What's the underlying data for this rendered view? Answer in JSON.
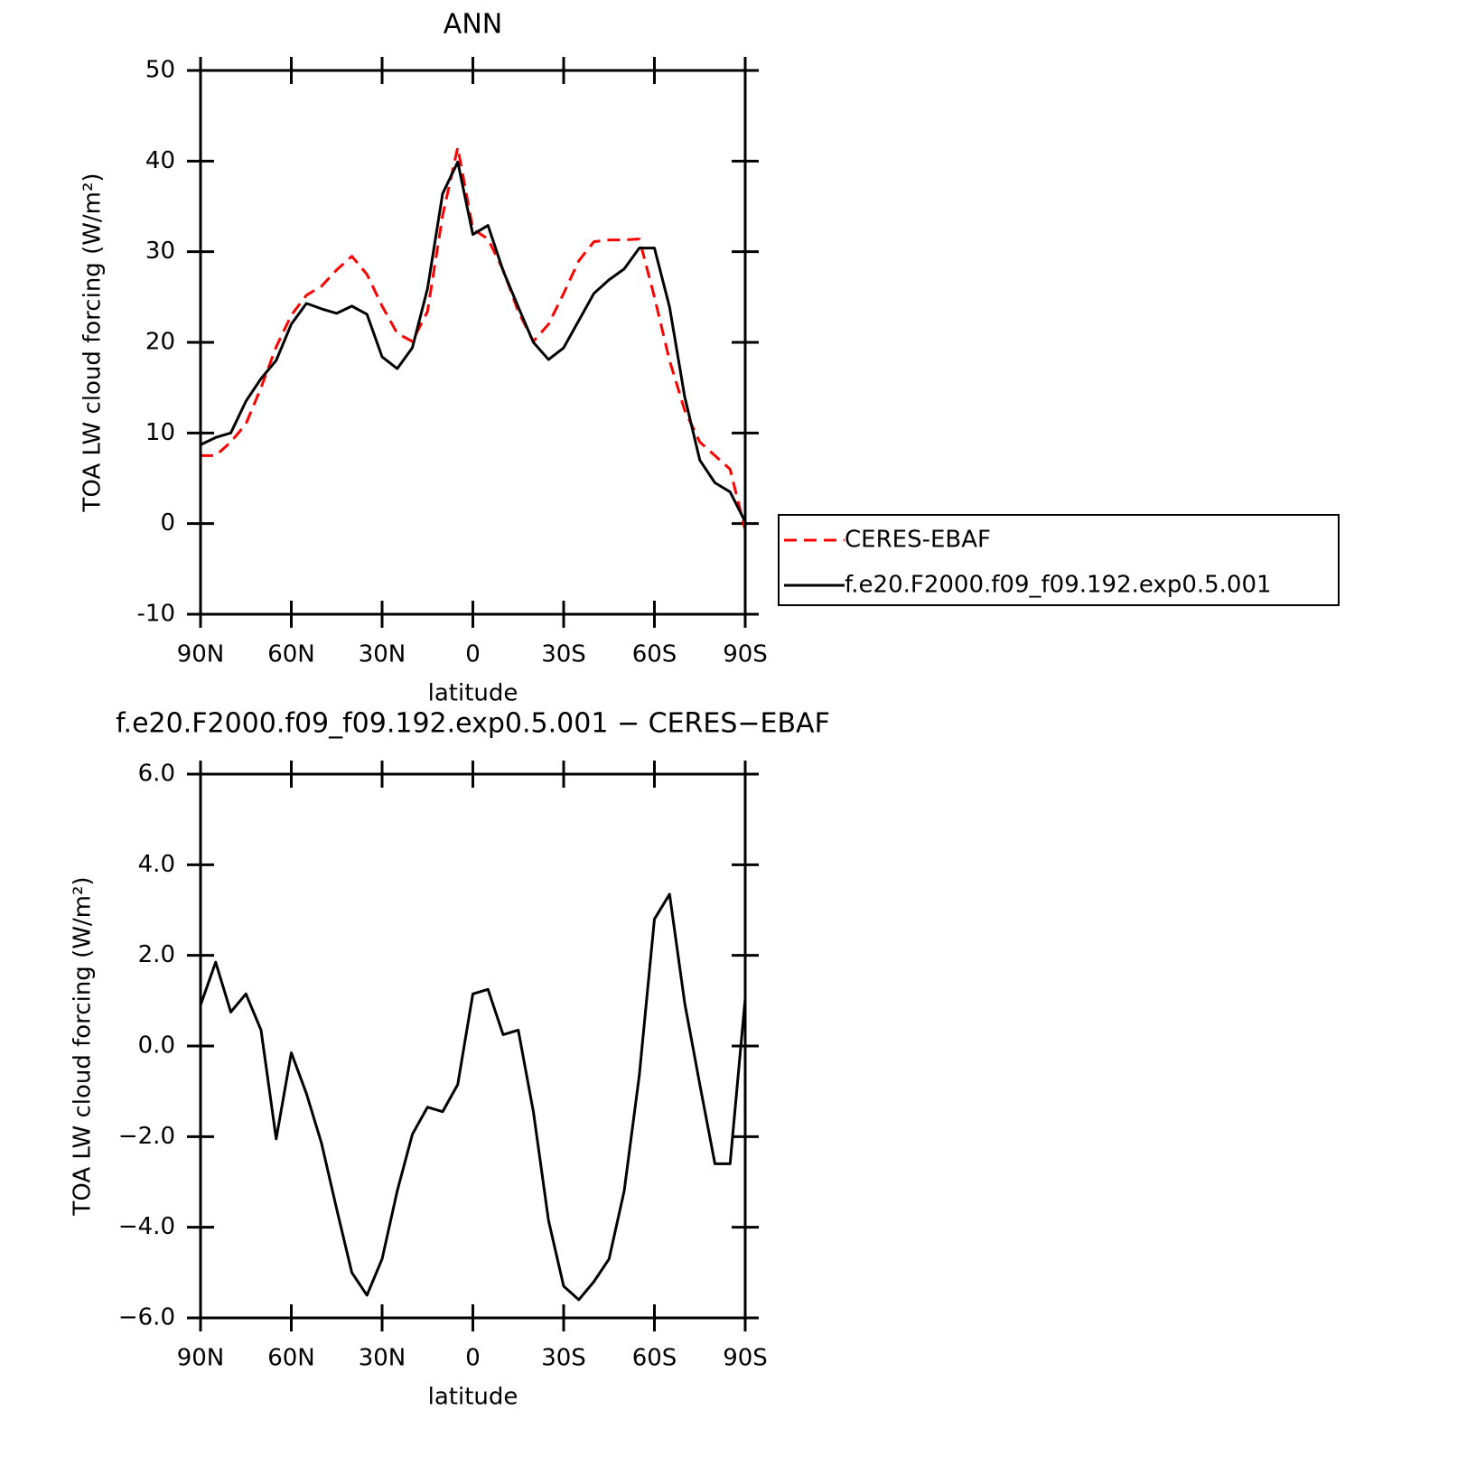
{
  "chart_data": [
    {
      "type": "line",
      "title": "ANN",
      "xlabel": "latitude",
      "ylabel": "TOA LW cloud forcing (W/m²)",
      "x": [
        90,
        85,
        80,
        75,
        70,
        65,
        60,
        55,
        50,
        45,
        40,
        35,
        30,
        25,
        20,
        15,
        10,
        5,
        0,
        -5,
        -10,
        -15,
        -20,
        -25,
        -30,
        -35,
        -40,
        -45,
        -50,
        -55,
        -60,
        -65,
        -70,
        -75,
        -80,
        -85,
        -90
      ],
      "xlim": [
        90,
        -90
      ],
      "xticks": [
        {
          "value": 90,
          "label": "90N"
        },
        {
          "value": 60,
          "label": "60N"
        },
        {
          "value": 30,
          "label": "30N"
        },
        0,
        {
          "value": -30,
          "label": "30S"
        },
        {
          "value": -60,
          "label": "60S"
        },
        {
          "value": -90,
          "label": "90S"
        }
      ],
      "ylim": [
        -10,
        50
      ],
      "yticks": [
        -10,
        0,
        10,
        20,
        30,
        40,
        50
      ],
      "legend": "right",
      "series": [
        {
          "name": "CERES-EBAF",
          "color": "#ff0000",
          "dash": true,
          "values": [
            7.5,
            7.5,
            9,
            11,
            15,
            19.5,
            23,
            25.2,
            26.2,
            28,
            29.5,
            27.5,
            24,
            21,
            20.1,
            23.4,
            34,
            41.5,
            32.5,
            31.4,
            28,
            23.4,
            20.1,
            22,
            25.4,
            29,
            31.1,
            31.3,
            31.3,
            31.4,
            25,
            18,
            12.5,
            9,
            7.5,
            6,
            -0.7
          ]
        },
        {
          "name": "f.e20.F2000.f09_f09.192.exp0.5.001",
          "color": "#000000",
          "dash": false,
          "values": [
            8.7,
            9.5,
            10,
            13.5,
            16,
            18,
            22,
            24.3,
            23.7,
            23.2,
            24,
            23.1,
            18.4,
            17.1,
            19.4,
            25.9,
            36.4,
            39.9,
            31.9,
            32.9,
            27.9,
            23.9,
            20,
            18.1,
            19.4,
            22.4,
            25.4,
            26.9,
            28.1,
            30.4,
            30.4,
            23.9,
            14,
            7,
            4.5,
            3.5,
            0.2
          ]
        }
      ]
    },
    {
      "type": "line",
      "title": "f.e20.F2000.f09_f09.192.exp0.5.001 − CERES−EBAF",
      "xlabel": "latitude",
      "ylabel": "TOA LW cloud forcing (W/m²)",
      "x": [
        90,
        85,
        80,
        75,
        70,
        65,
        60,
        55,
        50,
        45,
        40,
        35,
        30,
        25,
        20,
        15,
        10,
        5,
        0,
        -5,
        -10,
        -15,
        -20,
        -25,
        -30,
        -35,
        -40,
        -45,
        -50,
        -55,
        -60,
        -65,
        -70,
        -75,
        -80,
        -85,
        -90
      ],
      "xlim": [
        90,
        -90
      ],
      "xticks": [
        {
          "value": 90,
          "label": "90N"
        },
        {
          "value": 60,
          "label": "60N"
        },
        {
          "value": 30,
          "label": "30N"
        },
        0,
        {
          "value": -30,
          "label": "30S"
        },
        {
          "value": -60,
          "label": "60S"
        },
        {
          "value": -90,
          "label": "90S"
        }
      ],
      "ylim": [
        -6,
        6
      ],
      "yticks": [
        {
          "value": -6,
          "label": "−6.0"
        },
        {
          "value": -4,
          "label": "−4.0"
        },
        {
          "value": -2,
          "label": "−2.0"
        },
        {
          "value": 0,
          "label": "0.0"
        },
        {
          "value": 2,
          "label": "2.0"
        },
        {
          "value": 4,
          "label": "4.0"
        },
        {
          "value": 6,
          "label": "6.0"
        }
      ],
      "series": [
        {
          "color": "#000000",
          "dash": false,
          "values": [
            0.9,
            1.85,
            0.75,
            1.15,
            0.35,
            -2.05,
            -0.15,
            -1.05,
            -2.15,
            -3.6,
            -5.0,
            -5.5,
            -4.7,
            -3.2,
            -1.95,
            -1.35,
            -1.45,
            -0.85,
            1.15,
            1.25,
            0.25,
            0.35,
            -1.45,
            -3.85,
            -5.3,
            -5.6,
            -5.2,
            -4.7,
            -3.2,
            -0.65,
            2.8,
            3.35,
            0.95,
            -0.85,
            -2.6,
            -2.6,
            1.05
          ]
        }
      ]
    }
  ]
}
